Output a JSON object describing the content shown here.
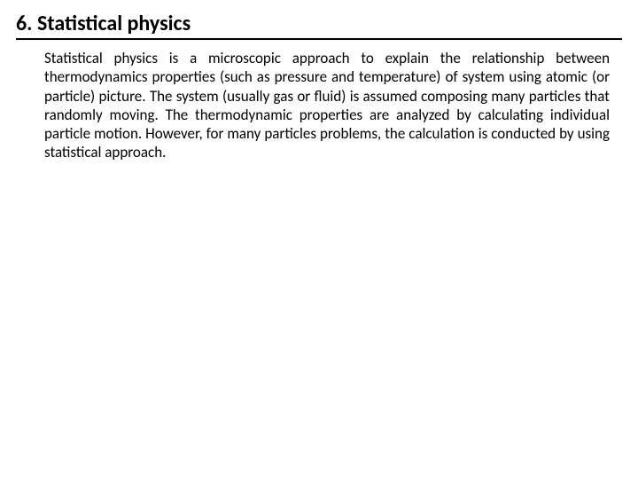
{
  "heading": {
    "text": "6. Statistical physics",
    "fontsize": 24,
    "fontweight": "bold",
    "color": "#000000",
    "underline_color": "#000000"
  },
  "body": {
    "text": "Statistical physics is a microscopic approach to explain the relationship between thermodynamics properties (such as pressure and temperature) of system using atomic (or particle) picture. The system (usually gas or fluid) is assumed composing many particles that randomly moving. The thermodynamic properties are analyzed by calculating individual particle motion. However, for many particles problems, the calculation is conducted by using statistical approach.",
    "fontsize": 17,
    "color": "#000000",
    "align": "justify"
  },
  "background_color": "#ffffff"
}
